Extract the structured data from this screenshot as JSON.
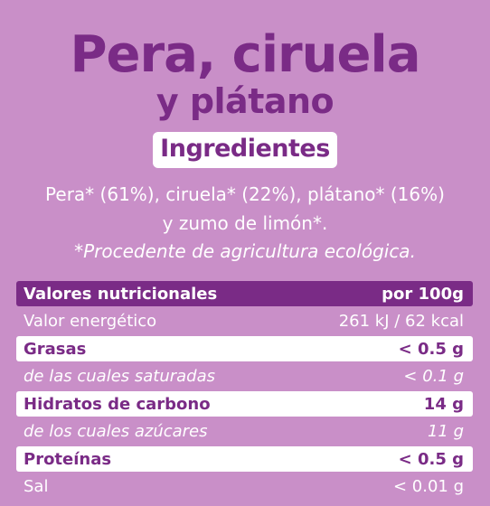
{
  "title": {
    "line1": "Pera, ciruela",
    "line2": "y plátano"
  },
  "ingredients": {
    "heading": "Ingredientes",
    "line1": "Pera* (61%), ciruela* (22%), plátano* (16%)",
    "line2": "y zumo de limón*.",
    "note": "*Procedente de agricultura ecológica."
  },
  "nutrition": {
    "header": {
      "label": "Valores nutricionales",
      "value": "por 100g"
    },
    "rows": [
      {
        "label": "Valor energético",
        "value": "261 kJ / 62 kcal"
      },
      {
        "label": "Grasas",
        "value": "< 0.5 g"
      },
      {
        "label": "de las cuales saturadas",
        "value": "< 0.1 g"
      },
      {
        "label": "Hidratos de carbono",
        "value": "14 g"
      },
      {
        "label": "de los cuales azúcares",
        "value": "11 g"
      },
      {
        "label": "Proteínas",
        "value": "< 0.5 g"
      },
      {
        "label": "Sal",
        "value": "< 0.01 g"
      }
    ]
  },
  "colors": {
    "background": "#c98fc8",
    "accent": "#7a2b86",
    "panel": "#ffffff"
  }
}
